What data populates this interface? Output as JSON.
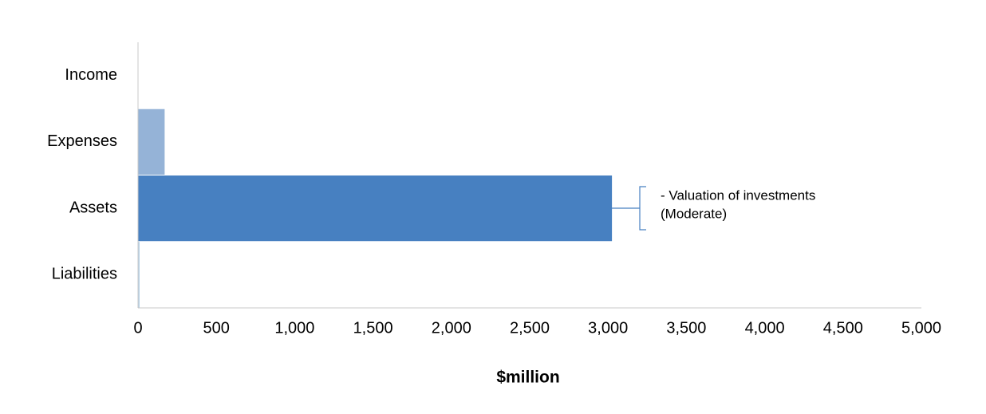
{
  "chart_data": {
    "type": "bar",
    "orientation": "horizontal",
    "categories": [
      "Income",
      "Expenses",
      "Assets",
      "Liabilities"
    ],
    "values": [
      0,
      170,
      3025,
      10
    ],
    "colors": [
      "#95b3d7",
      "#95b3d7",
      "#4780c1",
      "#b7d0e6"
    ],
    "xlabel": "$million",
    "xlim": [
      0,
      5000
    ],
    "xticks": [
      0,
      500,
      {
        "value": 1000,
        "label": "1,000"
      },
      {
        "value": 1500,
        "label": "1,500"
      },
      {
        "value": 2000,
        "label": "2,000"
      },
      {
        "value": 2500,
        "label": "2,500"
      },
      {
        "value": 3000,
        "label": "3,000"
      },
      {
        "value": 3500,
        "label": "3,500"
      },
      {
        "value": 4000,
        "label": "4,000"
      },
      {
        "value": 4500,
        "label": "4,500"
      },
      {
        "value": 5000,
        "label": "5,000"
      }
    ],
    "annotation": [
      "- Valuation of investments",
      "(Moderate)"
    ]
  }
}
